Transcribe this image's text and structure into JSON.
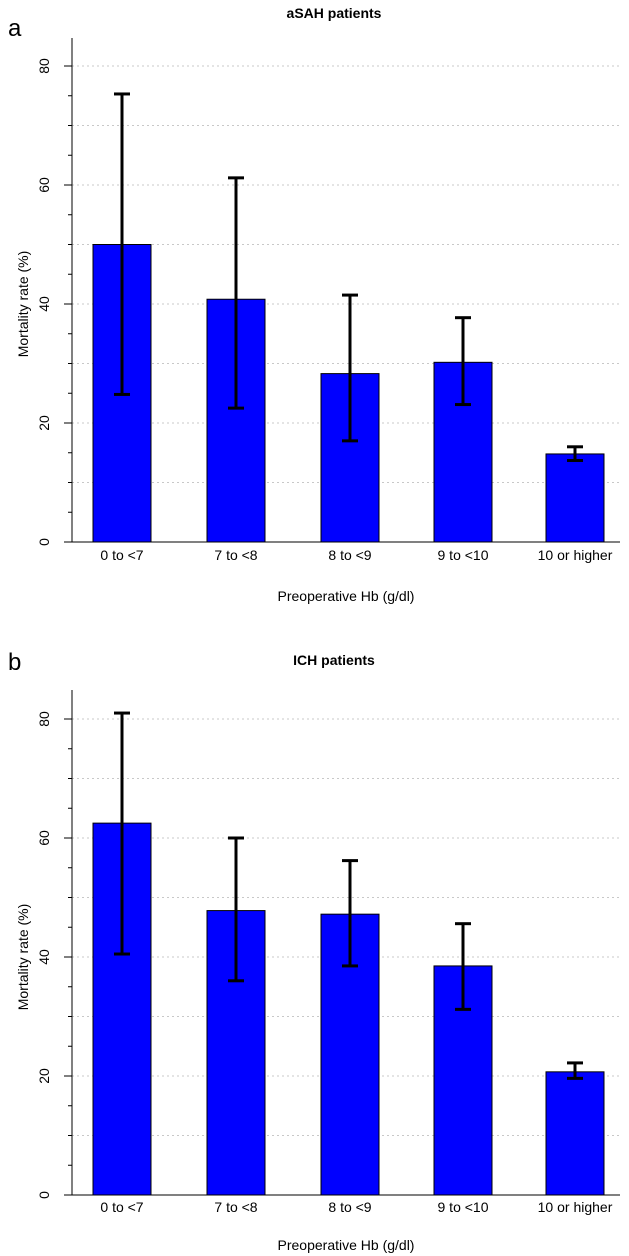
{
  "chart_data": [
    {
      "type": "bar",
      "panel_label": "a",
      "title": "aSAH patients",
      "xlabel": "Preoperative Hb (g/dl)",
      "ylabel": "Mortality rate (%)",
      "ylim": [
        0,
        85
      ],
      "yticks": [
        0,
        20,
        40,
        60,
        80
      ],
      "grid": true,
      "categories": [
        "0 to <7",
        "7 to <8",
        "8 to <9",
        "9 to <10",
        "10 or higher"
      ],
      "values": [
        50,
        40.8,
        28.3,
        30.2,
        14.8
      ],
      "error_low": [
        24.8,
        22.5,
        17.0,
        23.1,
        13.7
      ],
      "error_high": [
        75.3,
        61.2,
        41.5,
        37.7,
        16.0
      ],
      "bar_color": "#0000ff"
    },
    {
      "type": "bar",
      "panel_label": "b",
      "title": "ICH patients",
      "xlabel": "Preoperative Hb (g/dl)",
      "ylabel": "Mortality rate (%)",
      "ylim": [
        0,
        85
      ],
      "yticks": [
        0,
        20,
        40,
        60,
        80
      ],
      "grid": true,
      "categories": [
        "0 to <7",
        "7 to <8",
        "8 to <9",
        "9 to <10",
        "10 or higher"
      ],
      "values": [
        62.5,
        47.8,
        47.2,
        38.5,
        20.7
      ],
      "error_low": [
        40.5,
        36.0,
        38.5,
        31.2,
        19.6
      ],
      "error_high": [
        81.0,
        60.0,
        56.2,
        45.6,
        22.2
      ],
      "bar_color": "#0000ff"
    }
  ]
}
